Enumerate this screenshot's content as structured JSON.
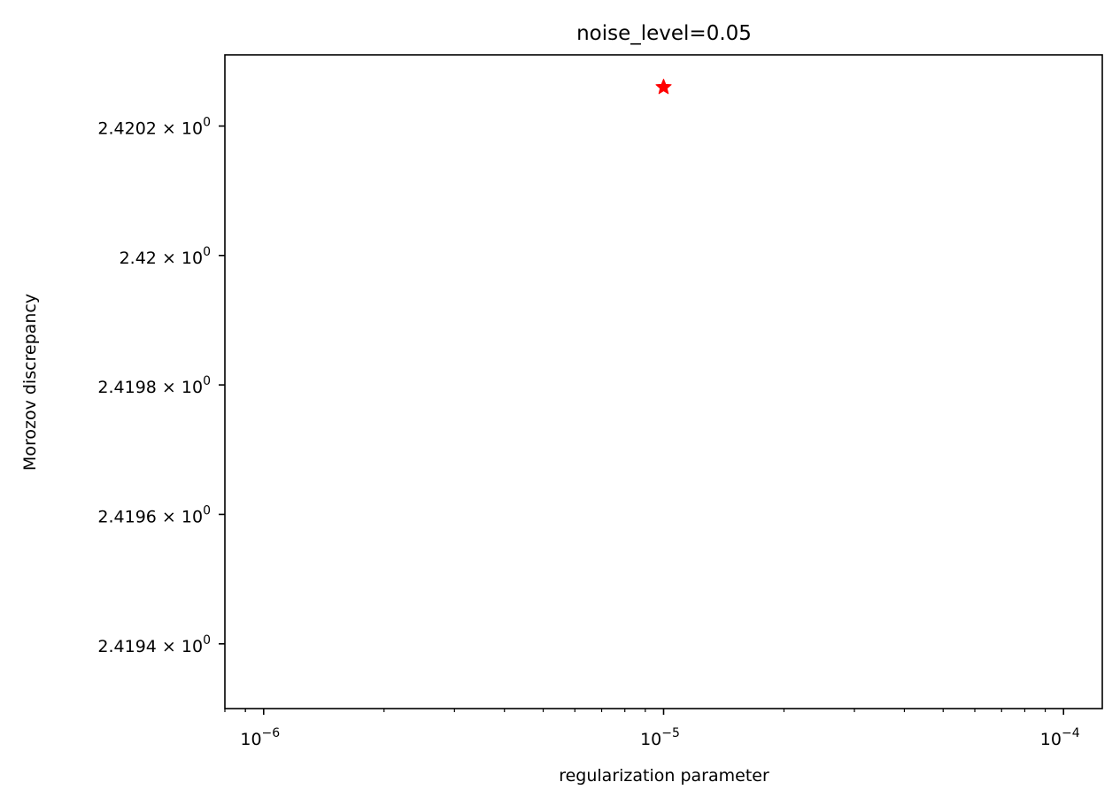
{
  "chart_data": {
    "type": "scatter",
    "title": "noise_level=0.05",
    "xlabel": "regularization parameter",
    "ylabel": "Morozov discrepancy",
    "x_scale": "log",
    "y_scale": "log",
    "xlim": [
      8e-07,
      0.000125
    ],
    "ylim": [
      2.4193,
      2.42031
    ],
    "x_ticks": [
      {
        "value": 1e-06,
        "base": "10",
        "exp": "−6"
      },
      {
        "value": 1e-05,
        "base": "10",
        "exp": "−5"
      },
      {
        "value": 0.0001,
        "base": "10",
        "exp": "−4"
      }
    ],
    "y_ticks": [
      {
        "value": 2.4202,
        "mantissa": "2.4202",
        "times": " × ",
        "base": "10",
        "exp": "0"
      },
      {
        "value": 2.42,
        "mantissa": "2.42",
        "times": " × ",
        "base": "10",
        "exp": "0"
      },
      {
        "value": 2.4198,
        "mantissa": "2.4198",
        "times": " × ",
        "base": "10",
        "exp": "0"
      },
      {
        "value": 2.4196,
        "mantissa": "2.4196",
        "times": " × ",
        "base": "10",
        "exp": "0"
      },
      {
        "value": 2.4194,
        "mantissa": "2.4194",
        "times": " × ",
        "base": "10",
        "exp": "0"
      }
    ],
    "points": [
      {
        "x": 1e-05,
        "y": 2.42026
      }
    ],
    "marker": "star",
    "marker_color": "#ff0000",
    "grid": false,
    "legend": "none"
  }
}
